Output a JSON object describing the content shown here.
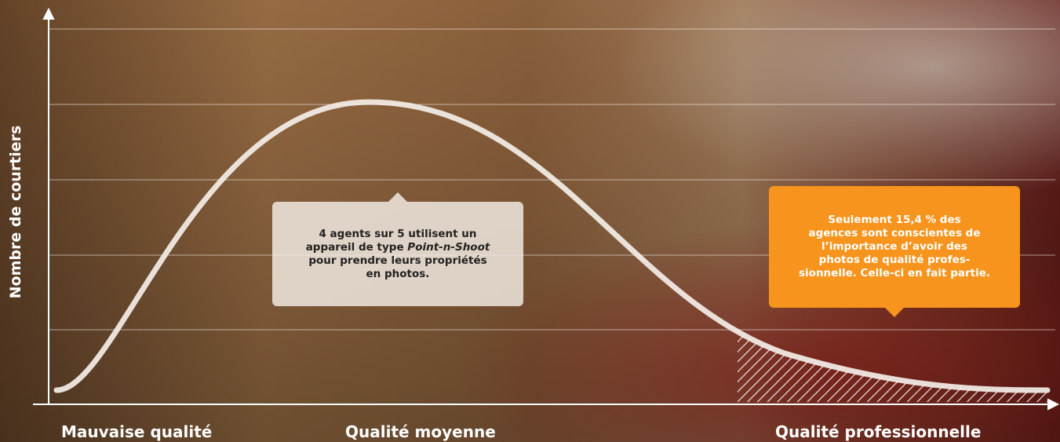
{
  "axis": {
    "y_label": "Nombre de courtiers",
    "x_labels": [
      "Mauvaise qualité",
      "Qualité moyenne",
      "Qualité professionnelle"
    ]
  },
  "callouts": [
    {
      "lines": [
        "4 agents sur 5 utilisent un",
        "appareil de type ",
        "Point-n-Shoot",
        "pour prendre leurs propriétés",
        "en photos."
      ]
    },
    {
      "lines": [
        "Seulement 15,4 % des",
        "agences sont conscientes de",
        "l’importance d’avoir des",
        "photos de qualité profes-",
        "sionnelle. Celle-ci en fait partie."
      ]
    }
  ]
}
